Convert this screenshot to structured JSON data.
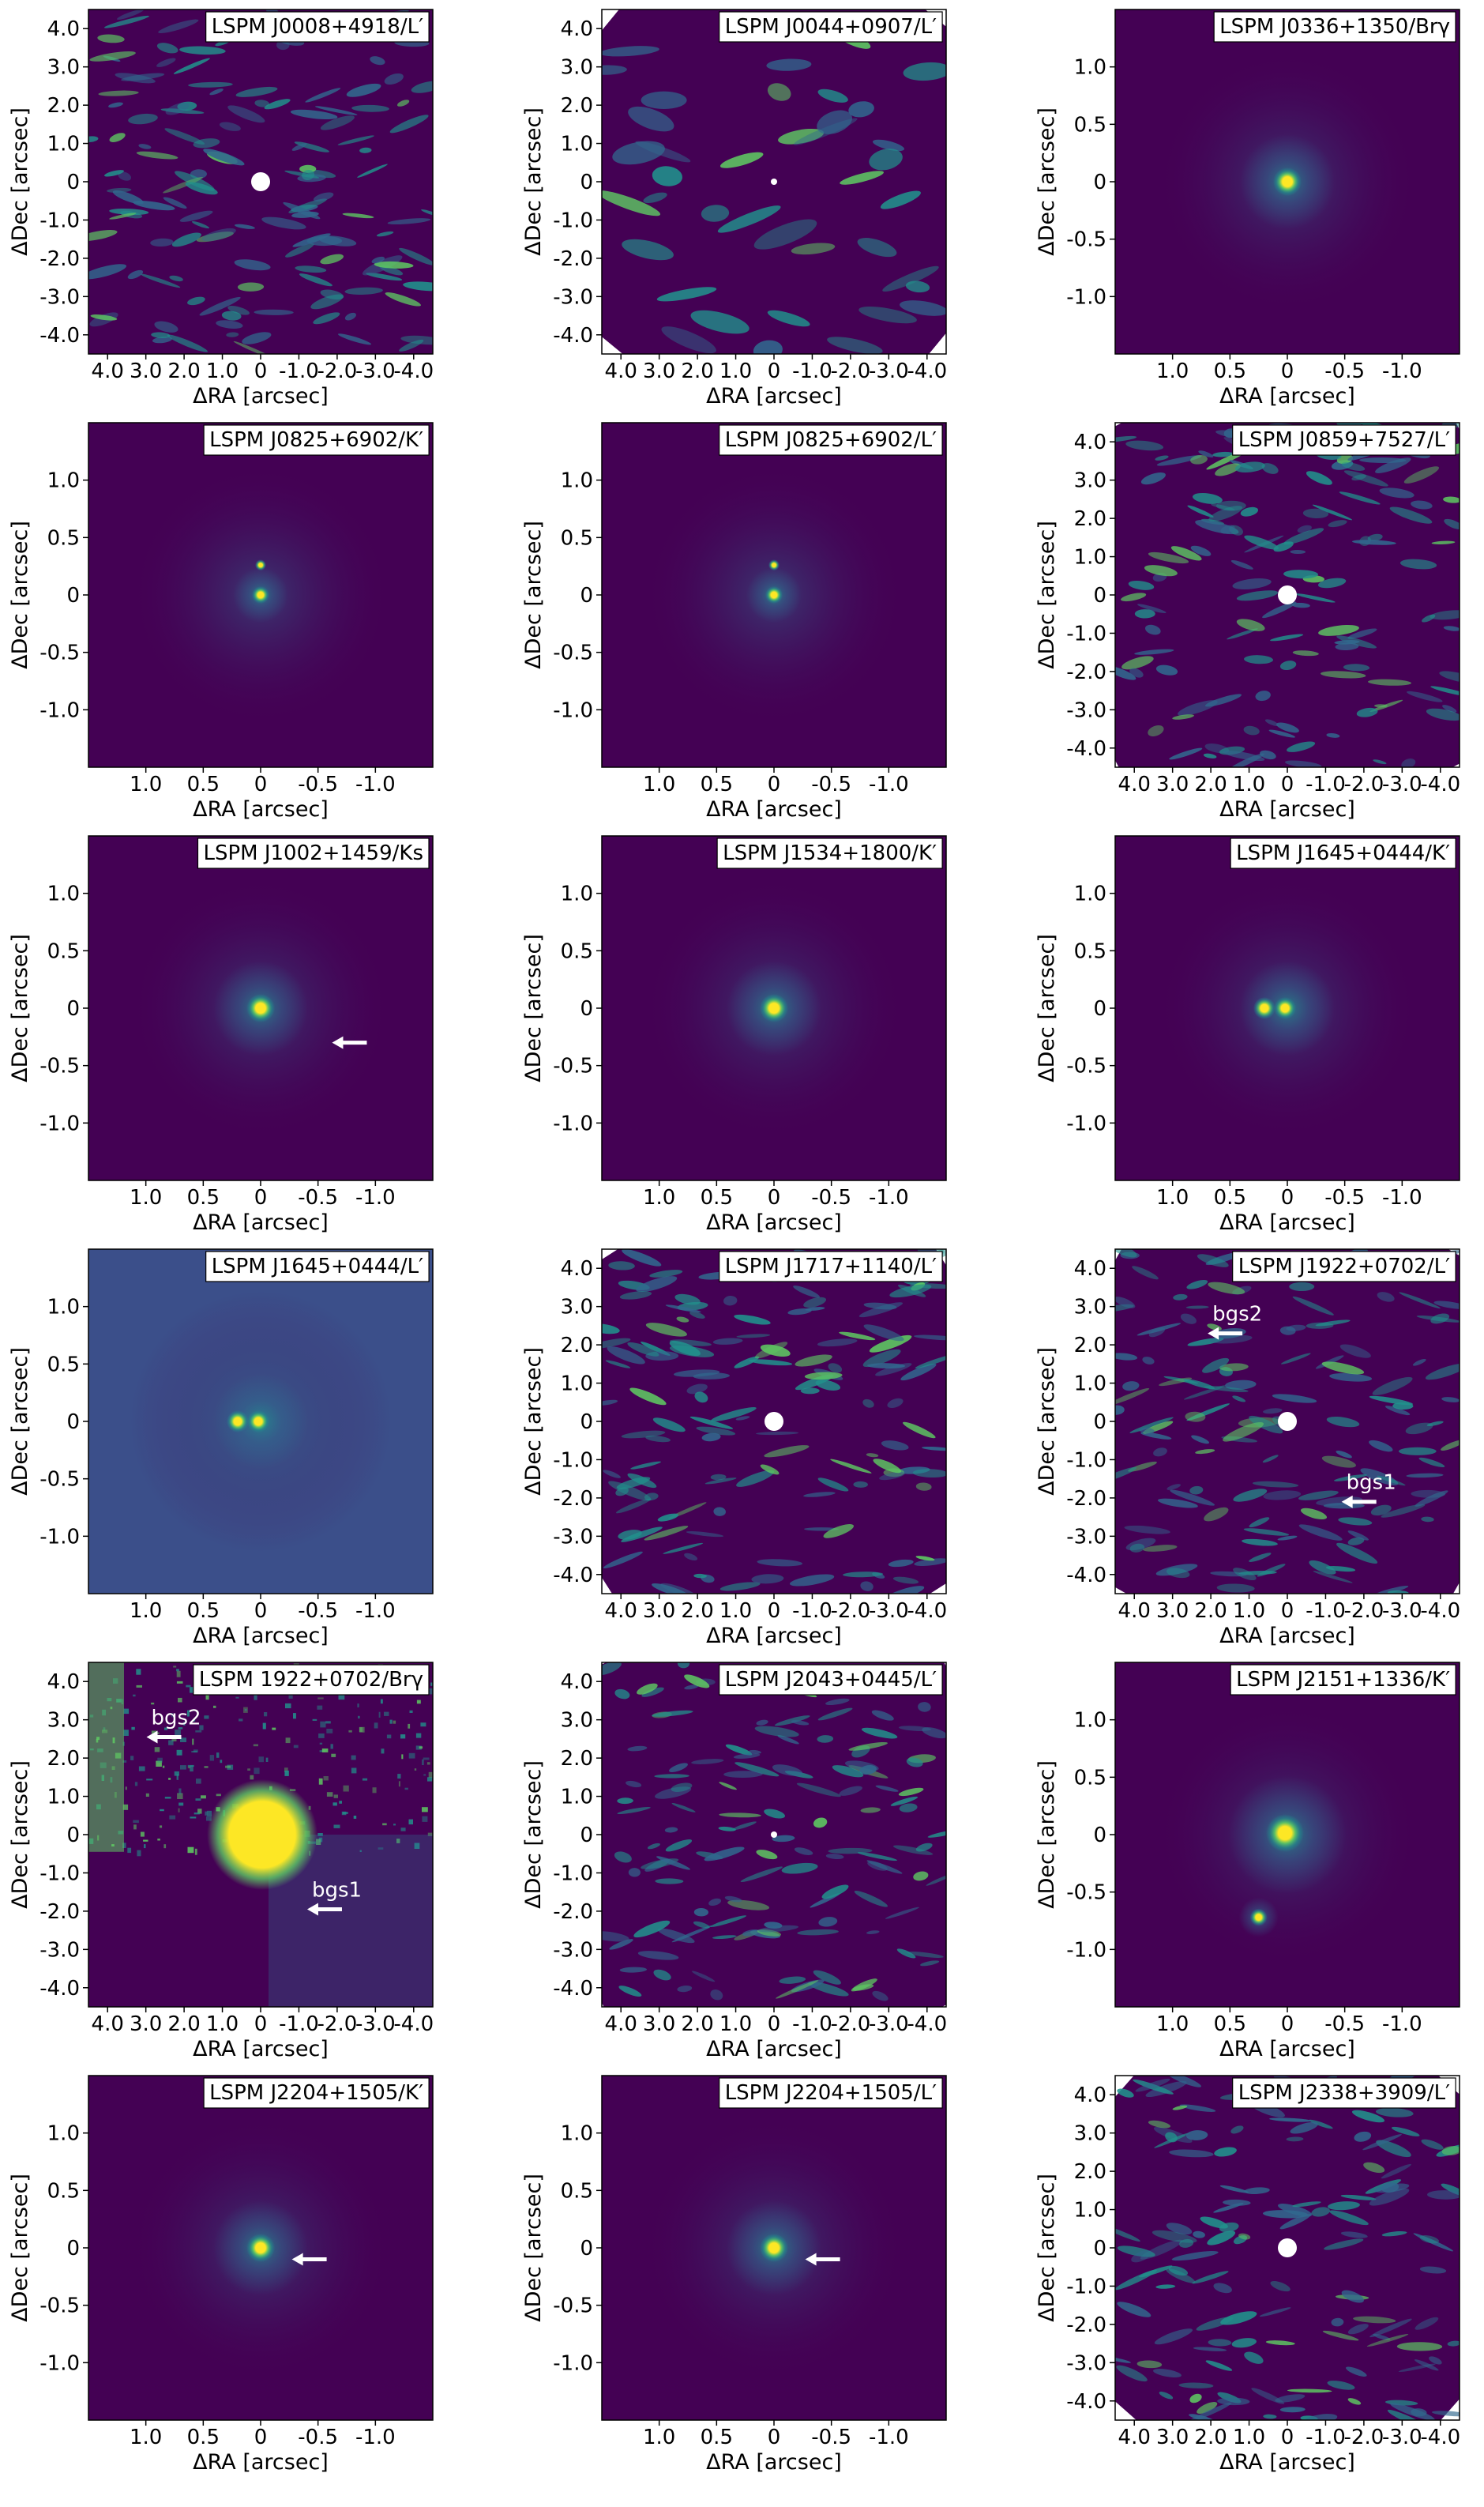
{
  "axis_labels": {
    "x": "ΔRA [arcsec]",
    "y": "ΔDec [arcsec]"
  },
  "colors": {
    "bg": "#440154",
    "mid": "#31688e",
    "teal": "#21918c",
    "green": "#5ec962",
    "yellow": "#fde725",
    "frame": "#000000",
    "annot": "#ffffff"
  },
  "ticks": {
    "wide": [
      4.0,
      3.0,
      2.0,
      1.0,
      0,
      -1.0,
      -2.0,
      -3.0,
      -4.0
    ],
    "wide_labels": [
      "4.0",
      "3.0",
      "2.0",
      "1.0",
      "0",
      "-1.0",
      "-2.0",
      "-3.0",
      "-4.0"
    ],
    "narrow": [
      1.0,
      0.5,
      0,
      -0.5,
      -1.0
    ],
    "narrow_labels": [
      "1.0",
      "0.5",
      "0",
      "-0.5",
      "-1.0"
    ]
  },
  "panels": [
    {
      "title": "LSPM J0008+4918/L′",
      "scale": "wide",
      "style": "speckle",
      "mask": true,
      "annotations": []
    },
    {
      "title": "LSPM J0044+0907/L′",
      "scale": "wide",
      "style": "blobs",
      "mask": true,
      "annotations": []
    },
    {
      "title": "LSPM J0336+1350/Brγ",
      "scale": "narrow",
      "style": "psf",
      "mask": false,
      "annotations": []
    },
    {
      "title": "LSPM J0825+6902/K′",
      "scale": "narrow",
      "style": "psf2",
      "mask": false,
      "annotations": []
    },
    {
      "title": "LSPM J0825+6902/L′",
      "scale": "narrow",
      "style": "psf2",
      "mask": false,
      "annotations": []
    },
    {
      "title": "LSPM J0859+7527/L′",
      "scale": "wide",
      "style": "speckle",
      "mask": true,
      "annotations": []
    },
    {
      "title": "LSPM J1002+1459/Ks",
      "scale": "narrow",
      "style": "psf",
      "mask": false,
      "annotations": [
        {
          "label": "",
          "ra": -0.65,
          "dec": -0.3
        }
      ]
    },
    {
      "title": "LSPM J1534+1800/K′",
      "scale": "narrow",
      "style": "psf",
      "mask": false,
      "annotations": []
    },
    {
      "title": "LSPM J1645+0444/K′",
      "scale": "narrow",
      "style": "binary",
      "mask": false,
      "annotations": []
    },
    {
      "title": "LSPM J1645+0444/L′",
      "scale": "narrow",
      "style": "binary",
      "mask": false,
      "annotations": []
    },
    {
      "title": "LSPM J1717+1140/L′",
      "scale": "wide",
      "style": "speckle",
      "mask": true,
      "annotations": []
    },
    {
      "title": "LSPM J1922+0702/L′",
      "scale": "wide",
      "style": "speckle",
      "mask": true,
      "annotations": [
        {
          "label": "bgs2",
          "ra": 2.0,
          "dec": 2.3
        },
        {
          "label": "bgs1",
          "ra": -1.5,
          "dec": -2.1
        }
      ]
    },
    {
      "title": "LSPM 1922+0702/Brγ",
      "scale": "wide",
      "style": "saturated",
      "mask": false,
      "annotations": [
        {
          "label": "bgs2",
          "ra": 2.9,
          "dec": 2.55
        },
        {
          "label": "bgs1",
          "ra": -1.3,
          "dec": -1.95
        }
      ]
    },
    {
      "title": "LSPM J2043+0445/L′",
      "scale": "wide",
      "style": "speckle",
      "mask": true,
      "annotations": []
    },
    {
      "title": "LSPM J2151+1336/K′",
      "scale": "narrow",
      "style": "psf2",
      "mask": false,
      "annotations": []
    },
    {
      "title": "LSPM J2204+1505/K′",
      "scale": "narrow",
      "style": "psf",
      "mask": false,
      "annotations": [
        {
          "label": "",
          "ra": -0.3,
          "dec": -0.1
        }
      ]
    },
    {
      "title": "LSPM J2204+1505/L′",
      "scale": "narrow",
      "style": "psf",
      "mask": false,
      "annotations": [
        {
          "label": "",
          "ra": -0.3,
          "dec": -0.1
        }
      ]
    },
    {
      "title": "LSPM J2338+3909/L′",
      "scale": "wide",
      "style": "speckle",
      "mask": true,
      "annotations": []
    }
  ]
}
